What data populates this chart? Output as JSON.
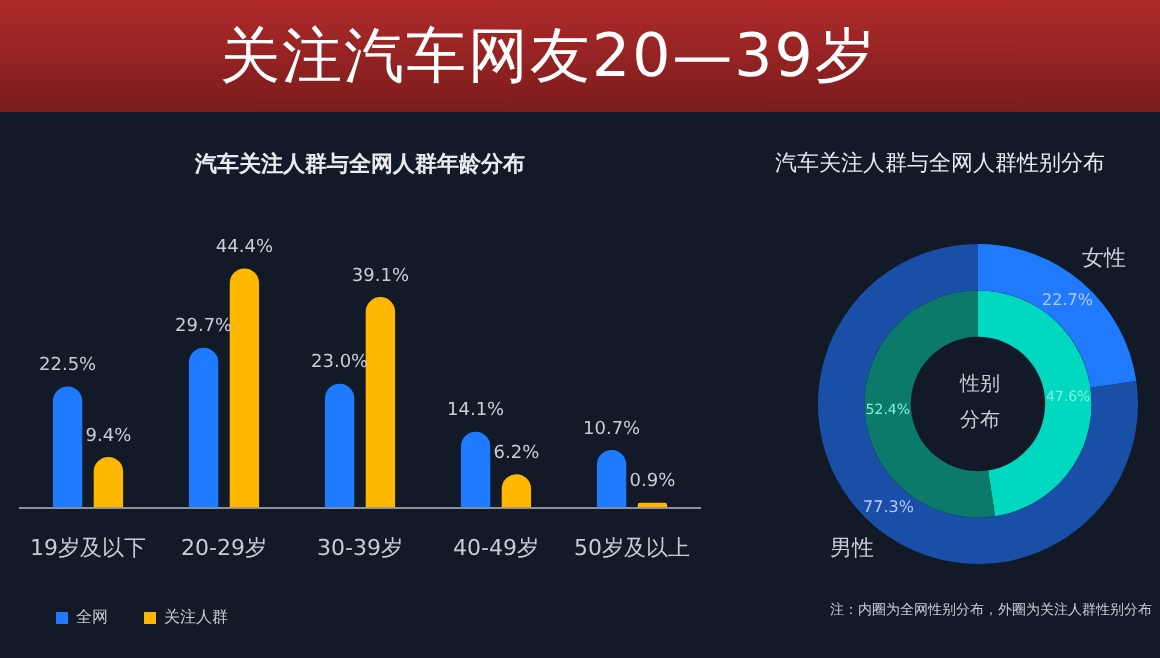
{
  "chart_data": [
    {
      "type": "bar",
      "title": "关注汽车网友20—39岁",
      "subtitle": "汽车关注人群与全网人群年龄分布",
      "categories": [
        "19岁及以下",
        "20-29岁",
        "30-39岁",
        "40-49岁",
        "50岁及以上"
      ],
      "series": [
        {
          "name": "全网",
          "color": "#1e7bff",
          "values": [
            22.5,
            29.7,
            23.0,
            14.1,
            10.7
          ],
          "value_labels": [
            "22.5%",
            "29.7%",
            "23.0%",
            "14.1%",
            "10.7%"
          ]
        },
        {
          "name": "关注人群",
          "color": "#ffb800",
          "values": [
            9.4,
            44.4,
            39.1,
            6.2,
            0.9
          ],
          "value_labels": [
            "9.4%",
            "44.4%",
            "39.1%",
            "6.2%",
            "0.9%"
          ]
        }
      ],
      "legend": "bottom left",
      "tick_labels": "x"
    },
    {
      "type": "donut",
      "title": "汽车关注人群与全网人群性别分布",
      "categories": [
        "女性",
        "男性"
      ],
      "series": [
        {
          "values": [
            22.7,
            77.3
          ],
          "colors": [
            "#1f7afc",
            "#1a4fa8"
          ],
          "value_labels": [
            "22.7%",
            "77.3%"
          ]
        },
        {
          "values": [
            47.6,
            52.4
          ],
          "colors": [
            "#00d9c0",
            "#0b7a6a"
          ],
          "value_labels": [
            "47.6%",
            "52.4%"
          ]
        }
      ],
      "annotations": [
        "性别分布",
        "注：内圈为全网性别分布，外圈为关注人群性别分布"
      ]
    }
  ]
}
